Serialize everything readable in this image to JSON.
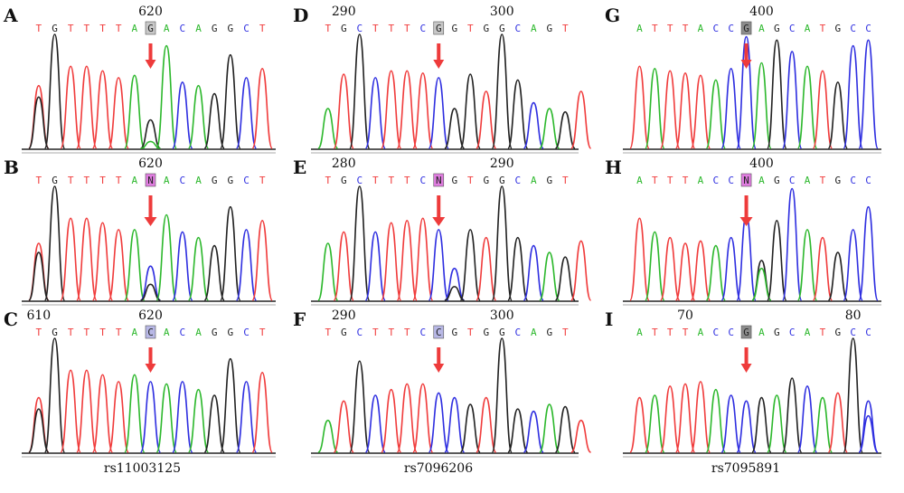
{
  "colors": {
    "A": "#2db82d",
    "C": "#2f2fe0",
    "G": "#222222",
    "T": "#f03c3c",
    "N": "#cc44cc",
    "arrow": "#ee3b3b"
  },
  "columns": [
    {
      "caption": "rs11003125",
      "panels": [
        {
          "label": "A",
          "bases": "TGTTTTAGACAGGCT",
          "highlight": 7,
          "hl_bg": "#c8c8c8",
          "numbers": [
            {
              "text": "620",
              "at": 7
            }
          ],
          "peaks": [
            [
              0,
              "T",
              0.55
            ],
            [
              0,
              "G",
              0.45
            ],
            [
              1,
              "G",
              1.0
            ],
            [
              2,
              "T",
              0.72
            ],
            [
              3,
              "T",
              0.72
            ],
            [
              4,
              "T",
              0.68
            ],
            [
              5,
              "T",
              0.62
            ],
            [
              6,
              "A",
              0.64
            ],
            [
              7,
              "G",
              0.25
            ],
            [
              7,
              "A",
              0.06
            ],
            [
              8,
              "A",
              0.9
            ],
            [
              9,
              "C",
              0.58
            ],
            [
              10,
              "A",
              0.55
            ],
            [
              11,
              "G",
              0.48
            ],
            [
              12,
              "G",
              0.82
            ],
            [
              13,
              "C",
              0.62
            ],
            [
              14,
              "T",
              0.7
            ]
          ]
        },
        {
          "label": "B",
          "bases": "TGTTTTANACAGGCT",
          "highlight": 7,
          "hl_bg": "#e07de0",
          "numbers": [
            {
              "text": "620",
              "at": 7
            }
          ],
          "peaks": [
            [
              0,
              "T",
              0.5
            ],
            [
              0,
              "G",
              0.42
            ],
            [
              1,
              "G",
              1.0
            ],
            [
              2,
              "T",
              0.72
            ],
            [
              3,
              "T",
              0.72
            ],
            [
              4,
              "T",
              0.68
            ],
            [
              5,
              "T",
              0.62
            ],
            [
              6,
              "A",
              0.62
            ],
            [
              7,
              "C",
              0.3
            ],
            [
              7,
              "G",
              0.14
            ],
            [
              8,
              "A",
              0.75
            ],
            [
              9,
              "C",
              0.6
            ],
            [
              10,
              "A",
              0.55
            ],
            [
              11,
              "G",
              0.48
            ],
            [
              12,
              "G",
              0.82
            ],
            [
              13,
              "C",
              0.62
            ],
            [
              14,
              "T",
              0.7
            ]
          ]
        },
        {
          "label": "C",
          "bases": "TGTTTTACACAGGCT",
          "highlight": 7,
          "hl_bg": "#b8b8e6",
          "numbers": [
            {
              "text": "610",
              "at": 0
            },
            {
              "text": "620",
              "at": 7
            }
          ],
          "peaks": [
            [
              0,
              "T",
              0.48
            ],
            [
              0,
              "G",
              0.38
            ],
            [
              1,
              "G",
              1.0
            ],
            [
              2,
              "T",
              0.72
            ],
            [
              3,
              "T",
              0.72
            ],
            [
              4,
              "T",
              0.68
            ],
            [
              5,
              "T",
              0.62
            ],
            [
              6,
              "A",
              0.68
            ],
            [
              7,
              "C",
              0.62
            ],
            [
              8,
              "A",
              0.6
            ],
            [
              9,
              "C",
              0.62
            ],
            [
              10,
              "A",
              0.55
            ],
            [
              11,
              "G",
              0.5
            ],
            [
              12,
              "G",
              0.82
            ],
            [
              13,
              "C",
              0.62
            ],
            [
              14,
              "T",
              0.7
            ]
          ]
        }
      ]
    },
    {
      "caption": "rs7096206",
      "panels": [
        {
          "label": "D",
          "bases": "TGCTTTCGGTGGCAGT",
          "highlight": 7,
          "hl_bg": "#c8c8c8",
          "numbers": [
            {
              "text": "290",
              "at": 1
            },
            {
              "text": "300",
              "at": 11
            }
          ],
          "peaks": [
            [
              0,
              "A",
              0.35
            ],
            [
              1,
              "T",
              0.65
            ],
            [
              2,
              "G",
              1.0
            ],
            [
              3,
              "C",
              0.62
            ],
            [
              4,
              "T",
              0.68
            ],
            [
              5,
              "T",
              0.68
            ],
            [
              6,
              "T",
              0.66
            ],
            [
              7,
              "C",
              0.62
            ],
            [
              8,
              "G",
              0.35
            ],
            [
              9,
              "G",
              0.65
            ],
            [
              10,
              "T",
              0.5
            ],
            [
              11,
              "G",
              1.0
            ],
            [
              12,
              "G",
              0.6
            ],
            [
              13,
              "C",
              0.4
            ],
            [
              14,
              "A",
              0.35
            ],
            [
              15,
              "G",
              0.32
            ],
            [
              16,
              "T",
              0.5
            ]
          ]
        },
        {
          "label": "E",
          "bases": "TGCTTTCNGTGGCAGT",
          "highlight": 7,
          "hl_bg": "#e07de0",
          "numbers": [
            {
              "text": "280",
              "at": 1
            },
            {
              "text": "290",
              "at": 11
            }
          ],
          "peaks": [
            [
              0,
              "A",
              0.5
            ],
            [
              1,
              "T",
              0.6
            ],
            [
              2,
              "G",
              1.0
            ],
            [
              3,
              "C",
              0.6
            ],
            [
              4,
              "T",
              0.68
            ],
            [
              5,
              "T",
              0.7
            ],
            [
              6,
              "T",
              0.72
            ],
            [
              7,
              "C",
              0.62
            ],
            [
              8,
              "C",
              0.28
            ],
            [
              8,
              "G",
              0.12
            ],
            [
              9,
              "G",
              0.62
            ],
            [
              10,
              "T",
              0.55
            ],
            [
              11,
              "G",
              1.0
            ],
            [
              12,
              "G",
              0.55
            ],
            [
              13,
              "C",
              0.48
            ],
            [
              14,
              "A",
              0.42
            ],
            [
              15,
              "G",
              0.38
            ],
            [
              16,
              "T",
              0.52
            ]
          ]
        },
        {
          "label": "F",
          "bases": "TGCTTTCCGTGGCAGT",
          "highlight": 7,
          "hl_bg": "#b8b8e6",
          "numbers": [
            {
              "text": "290",
              "at": 1
            },
            {
              "text": "300",
              "at": 11
            }
          ],
          "peaks": [
            [
              0,
              "A",
              0.28
            ],
            [
              1,
              "T",
              0.45
            ],
            [
              2,
              "G",
              0.8
            ],
            [
              3,
              "C",
              0.5
            ],
            [
              4,
              "T",
              0.55
            ],
            [
              5,
              "T",
              0.6
            ],
            [
              6,
              "T",
              0.6
            ],
            [
              7,
              "C",
              0.52
            ],
            [
              8,
              "C",
              0.48
            ],
            [
              9,
              "G",
              0.42
            ],
            [
              10,
              "T",
              0.48
            ],
            [
              11,
              "G",
              1.0
            ],
            [
              12,
              "G",
              0.38
            ],
            [
              13,
              "C",
              0.36
            ],
            [
              14,
              "A",
              0.42
            ],
            [
              15,
              "G",
              0.4
            ],
            [
              16,
              "T",
              0.28
            ]
          ]
        }
      ]
    },
    {
      "caption": "rs7095891",
      "panels": [
        {
          "label": "G",
          "bases": "ATTTACCGAGCATGCC",
          "highlight": 7,
          "hl_bg": "#8c8c8c",
          "numbers": [
            {
              "text": "400",
              "at": 8
            }
          ],
          "peaks": [
            [
              0,
              "T",
              0.72
            ],
            [
              1,
              "A",
              0.7
            ],
            [
              2,
              "T",
              0.68
            ],
            [
              3,
              "T",
              0.66
            ],
            [
              4,
              "T",
              0.64
            ],
            [
              5,
              "A",
              0.6
            ],
            [
              6,
              "C",
              0.7
            ],
            [
              7,
              "C",
              0.98
            ],
            [
              8,
              "A",
              0.75
            ],
            [
              9,
              "G",
              0.95
            ],
            [
              10,
              "C",
              0.85
            ],
            [
              11,
              "A",
              0.72
            ],
            [
              12,
              "T",
              0.68
            ],
            [
              13,
              "G",
              0.58
            ],
            [
              14,
              "C",
              0.9
            ],
            [
              15,
              "C",
              0.95
            ]
          ]
        },
        {
          "label": "H",
          "bases": "ATTTACCNAGCATGCC",
          "highlight": 7,
          "hl_bg": "#e07de0",
          "numbers": [
            {
              "text": "400",
              "at": 8
            }
          ],
          "peaks": [
            [
              0,
              "T",
              0.72
            ],
            [
              1,
              "A",
              0.6
            ],
            [
              2,
              "T",
              0.55
            ],
            [
              3,
              "T",
              0.5
            ],
            [
              4,
              "T",
              0.52
            ],
            [
              5,
              "A",
              0.48
            ],
            [
              6,
              "C",
              0.55
            ],
            [
              7,
              "C",
              0.75
            ],
            [
              8,
              "G",
              0.35
            ],
            [
              8,
              "A",
              0.28
            ],
            [
              9,
              "G",
              0.7
            ],
            [
              10,
              "C",
              0.98
            ],
            [
              11,
              "A",
              0.62
            ],
            [
              12,
              "T",
              0.55
            ],
            [
              13,
              "G",
              0.42
            ],
            [
              14,
              "C",
              0.62
            ],
            [
              15,
              "C",
              0.82
            ]
          ]
        },
        {
          "label": "I",
          "bases": "ATTTACCGAGCATGCC",
          "highlight": 7,
          "hl_bg": "#8c8c8c",
          "numbers": [
            {
              "text": "70",
              "at": 3
            },
            {
              "text": "80",
              "at": 14
            }
          ],
          "peaks": [
            [
              0,
              "T",
              0.48
            ],
            [
              1,
              "A",
              0.5
            ],
            [
              2,
              "T",
              0.58
            ],
            [
              3,
              "T",
              0.6
            ],
            [
              4,
              "T",
              0.62
            ],
            [
              5,
              "A",
              0.55
            ],
            [
              6,
              "C",
              0.5
            ],
            [
              7,
              "C",
              0.45
            ],
            [
              8,
              "G",
              0.48
            ],
            [
              9,
              "A",
              0.5
            ],
            [
              10,
              "G",
              0.65
            ],
            [
              11,
              "C",
              0.58
            ],
            [
              12,
              "A",
              0.48
            ],
            [
              13,
              "T",
              0.52
            ],
            [
              14,
              "G",
              1.0
            ],
            [
              15,
              "C",
              0.45
            ],
            [
              15,
              "C",
              0.32
            ]
          ]
        }
      ]
    }
  ]
}
